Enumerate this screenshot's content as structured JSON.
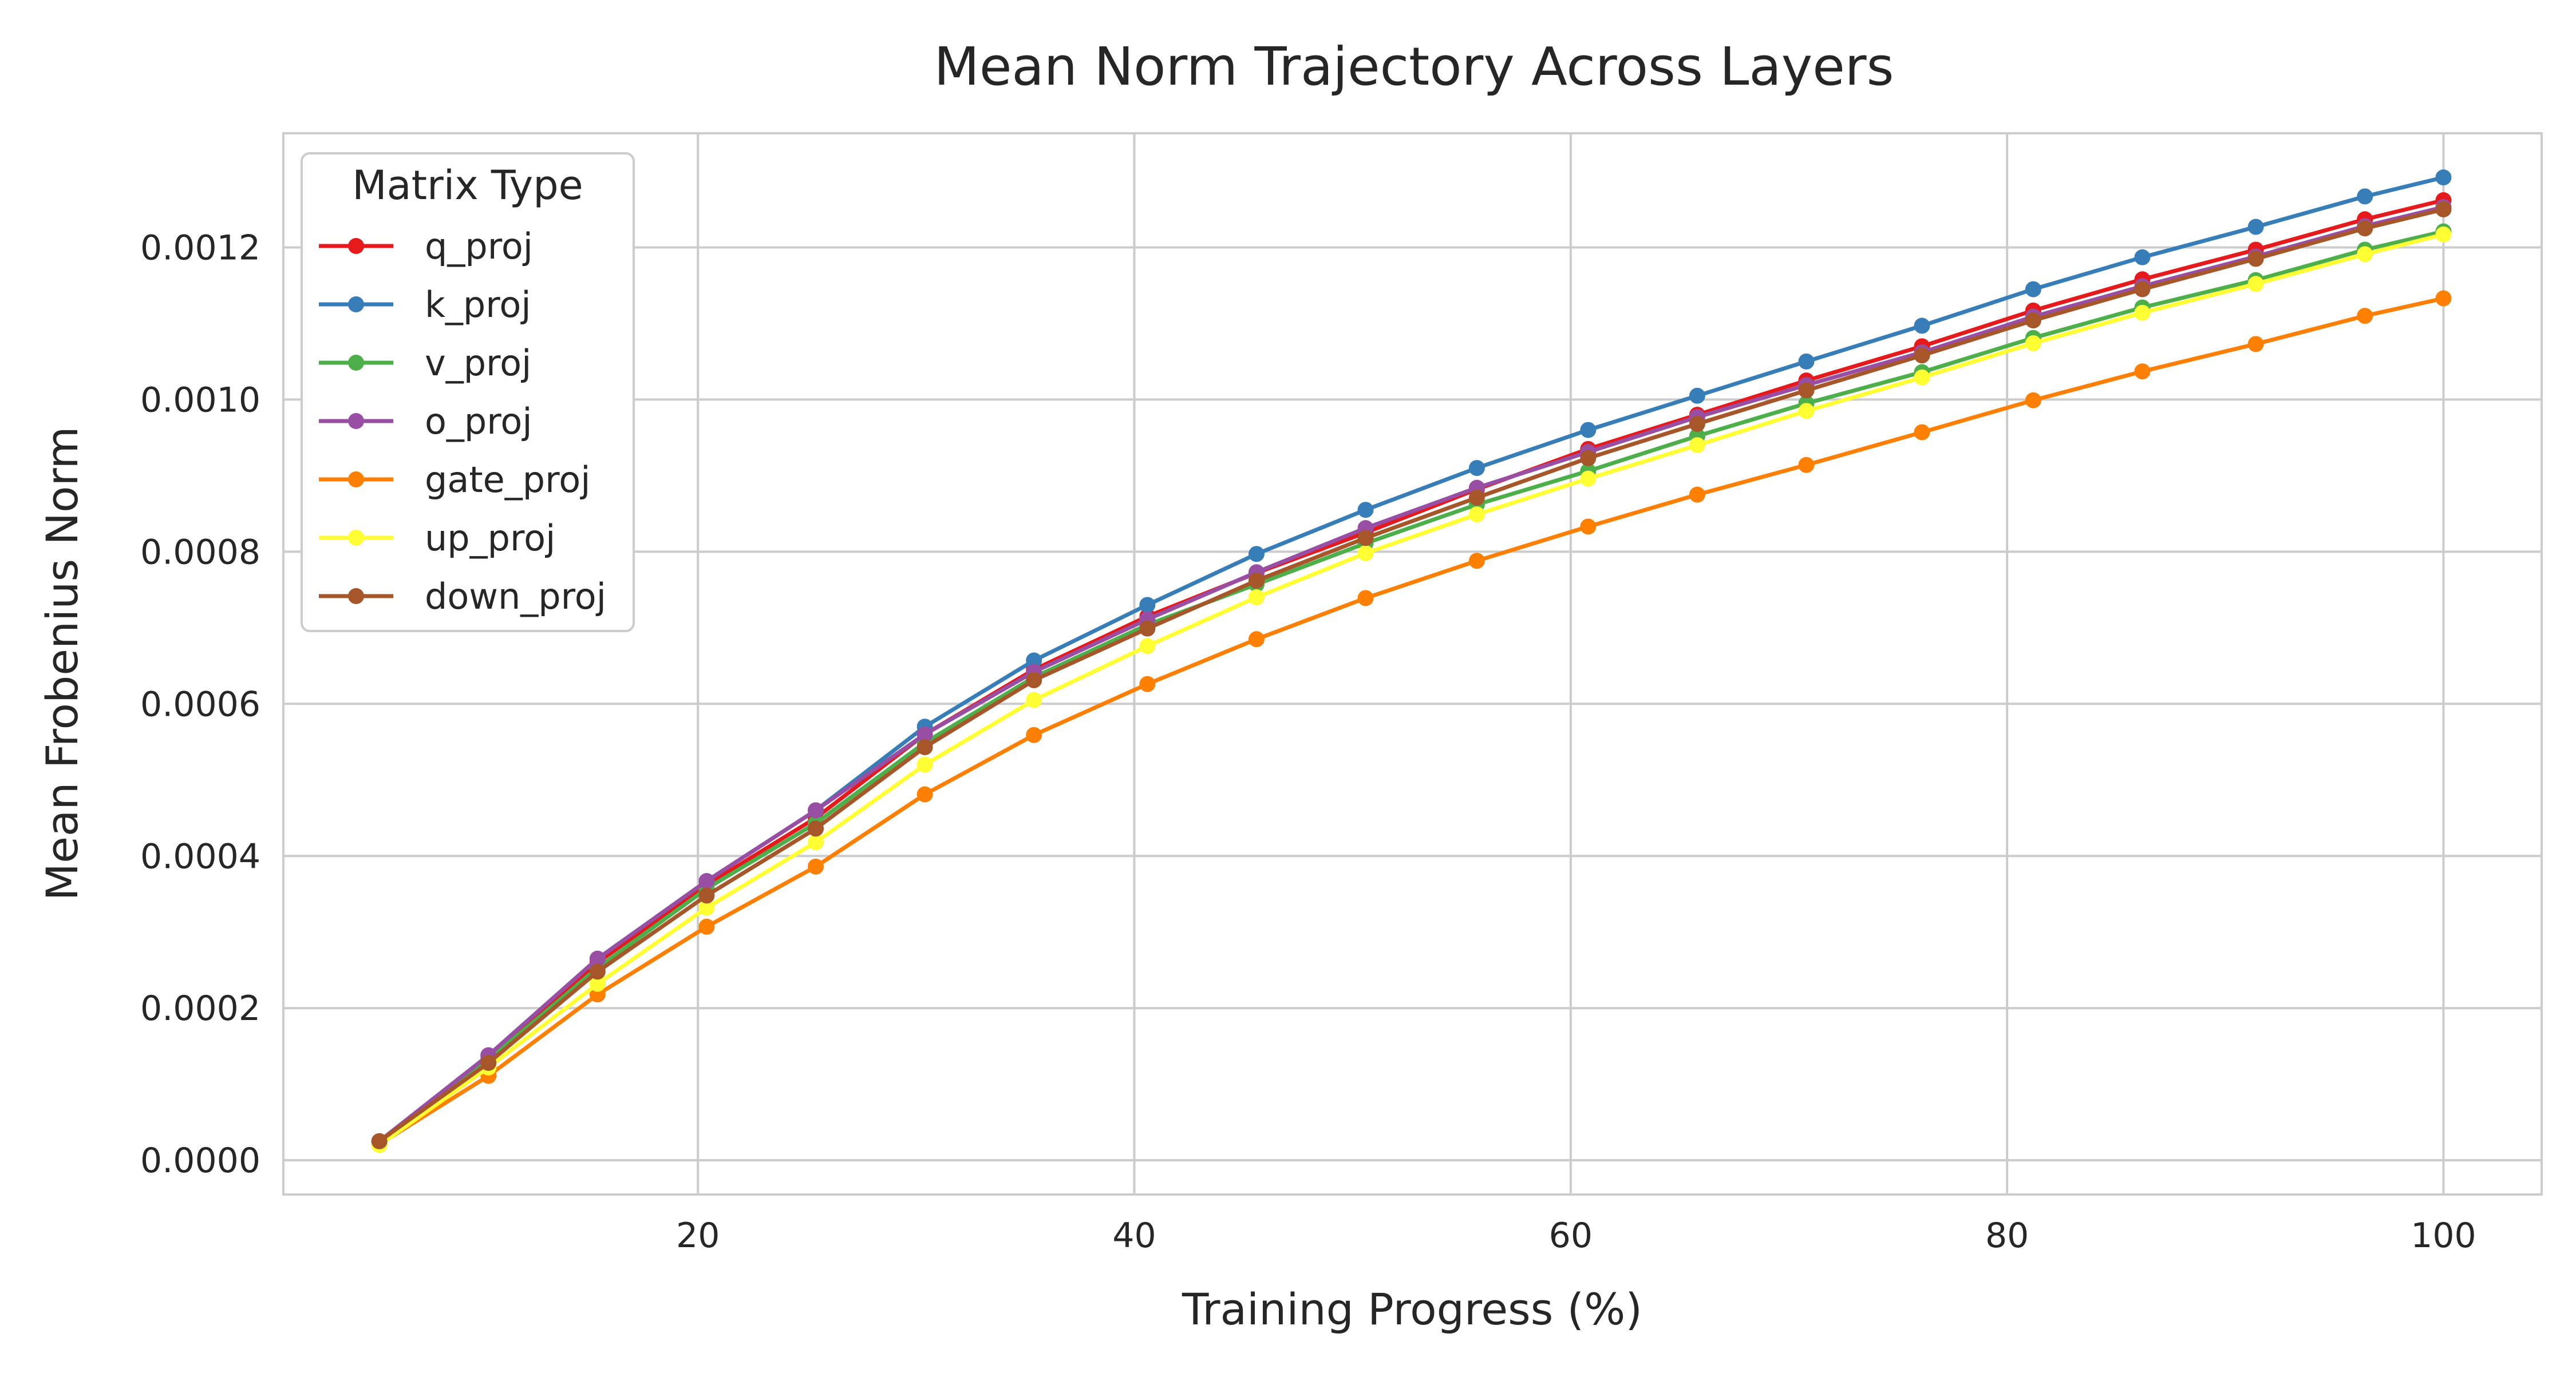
{
  "chart_data": {
    "type": "line",
    "title": "Mean Norm Trajectory Across Layers",
    "xlabel": "Training Progress (%)",
    "ylabel": "Mean Frobenius Norm",
    "xlim": [
      1,
      104.5
    ],
    "ylim": [
      -4.5e-05,
      0.00135
    ],
    "xticks": [
      20,
      40,
      60,
      80,
      100
    ],
    "xtick_labels": [
      "20",
      "40",
      "60",
      "80",
      "100"
    ],
    "yticks": [
      0,
      0.0002,
      0.0004,
      0.0006,
      0.0008,
      0.001,
      0.0012
    ],
    "ytick_labels": [
      "0.0000",
      "0.0002",
      "0.0004",
      "0.0006",
      "0.0008",
      "0.0010",
      "0.0012"
    ],
    "grid": true,
    "legend": {
      "title": "Matrix Type",
      "placement": "upper-left"
    },
    "x": [
      5.4,
      10.4,
      15.4,
      20.4,
      25.4,
      30.4,
      35.4,
      40.6,
      45.6,
      50.6,
      55.7,
      60.8,
      65.8,
      70.8,
      76.1,
      81.2,
      86.2,
      91.4,
      96.4,
      100
    ],
    "series": [
      {
        "name": "q_proj",
        "color": "#e41a1c",
        "values": [
          2.5e-05,
          0.000135,
          0.00026,
          0.000362,
          0.00045,
          0.00056,
          0.000645,
          0.000715,
          0.000772,
          0.000825,
          0.000882,
          0.000935,
          0.00098,
          0.001025,
          0.00107,
          0.001117,
          0.001158,
          0.001197,
          0.001237,
          0.001262
        ]
      },
      {
        "name": "k_proj",
        "color": "#377eb8",
        "values": [
          2.5e-05,
          0.000138,
          0.000265,
          0.000367,
          0.00046,
          0.00057,
          0.000657,
          0.00073,
          0.000797,
          0.000855,
          0.00091,
          0.00096,
          0.001005,
          0.00105,
          0.001097,
          0.001145,
          0.001187,
          0.001227,
          0.001267,
          0.001292
        ]
      },
      {
        "name": "v_proj",
        "color": "#4daf4a",
        "values": [
          2.5e-05,
          0.000132,
          0.000253,
          0.000357,
          0.000443,
          0.000549,
          0.000635,
          0.000704,
          0.000757,
          0.000811,
          0.000862,
          0.000906,
          0.000952,
          0.000995,
          0.001036,
          0.001081,
          0.001121,
          0.001157,
          0.001197,
          0.001221
        ]
      },
      {
        "name": "o_proj",
        "color": "#984ea3",
        "values": [
          2.5e-05,
          0.000138,
          0.000265,
          0.000367,
          0.00046,
          0.00056,
          0.000642,
          0.000711,
          0.000773,
          0.000831,
          0.000884,
          0.000931,
          0.000977,
          0.001019,
          0.001062,
          0.001109,
          0.001149,
          0.001188,
          0.001228,
          0.001253
        ]
      },
      {
        "name": "gate_proj",
        "color": "#ff7f00",
        "values": [
          2.1e-05,
          0.000111,
          0.000218,
          0.000307,
          0.000386,
          0.000481,
          0.000559,
          0.000626,
          0.000685,
          0.000739,
          0.000788,
          0.000833,
          0.000875,
          0.000914,
          0.000957,
          0.000999,
          0.001037,
          0.001073,
          0.00111,
          0.001133
        ]
      },
      {
        "name": "up_proj",
        "color": "#ffff33",
        "values": [
          2e-05,
          0.000122,
          0.000232,
          0.000332,
          0.000418,
          0.00052,
          0.000605,
          0.000676,
          0.00074,
          0.000798,
          0.000849,
          0.000896,
          0.00094,
          0.000985,
          0.001029,
          0.001074,
          0.001114,
          0.001152,
          0.001191,
          0.001217
        ]
      },
      {
        "name": "down_proj",
        "color": "#a65628",
        "values": [
          2.5e-05,
          0.000128,
          0.000248,
          0.000348,
          0.000436,
          0.000543,
          0.000631,
          0.000699,
          0.000762,
          0.000818,
          0.000871,
          0.000923,
          0.000968,
          0.001012,
          0.001058,
          0.001104,
          0.001145,
          0.001185,
          0.001225,
          0.00125
        ]
      }
    ]
  }
}
